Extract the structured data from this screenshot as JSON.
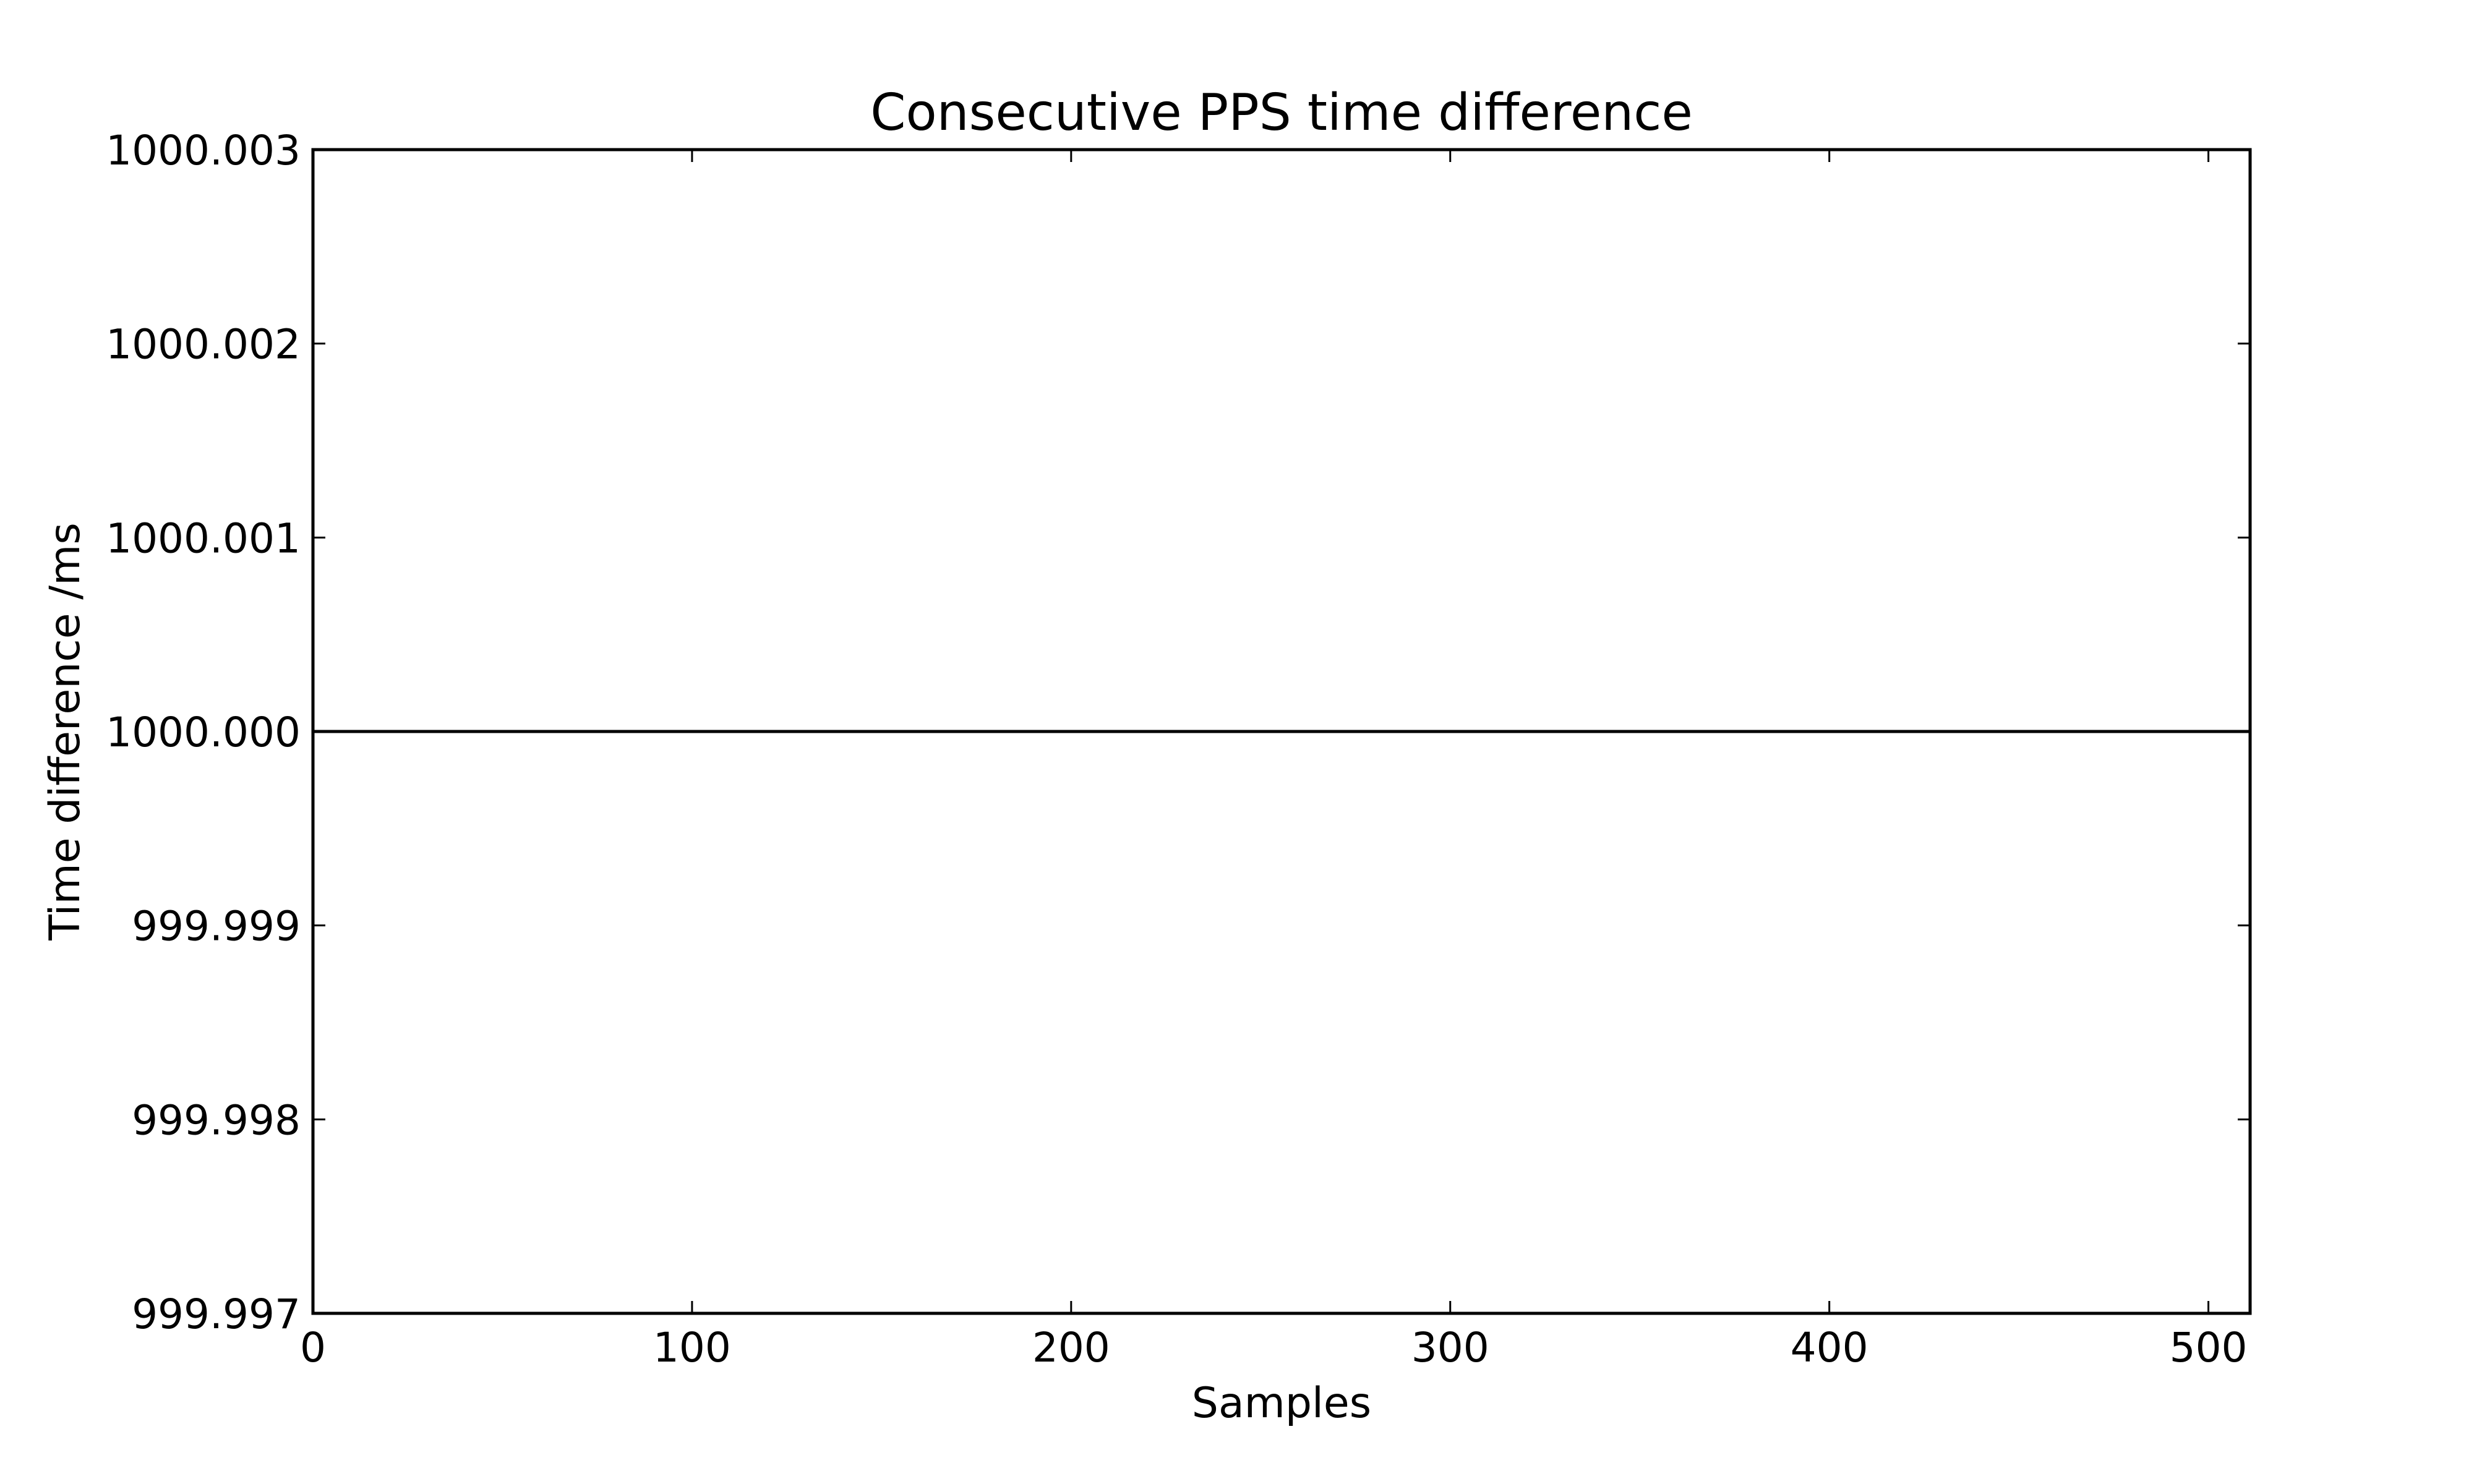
{
  "chart_data": {
    "type": "line",
    "title": "Consecutive PPS time difference",
    "xlabel": "Samples",
    "ylabel": "Time difference /ms",
    "xlim": [
      0,
      511
    ],
    "ylim": [
      999.997,
      1000.003
    ],
    "x_ticks": [
      "0",
      "100",
      "200",
      "300",
      "400",
      "500"
    ],
    "x_tick_values": [
      0,
      100,
      200,
      300,
      400,
      500
    ],
    "y_ticks": [
      "999.997",
      "999.998",
      "999.999",
      "1000.000",
      "1000.001",
      "1000.002",
      "1000.003"
    ],
    "y_tick_values": [
      999.997,
      999.998,
      999.999,
      1000.0,
      1000.001,
      1000.002,
      1000.003
    ],
    "grid": false,
    "line_color": "#000000",
    "series": [
      {
        "x": [
          0,
          511
        ],
        "y": [
          1000.0,
          1000.0
        ]
      }
    ]
  }
}
